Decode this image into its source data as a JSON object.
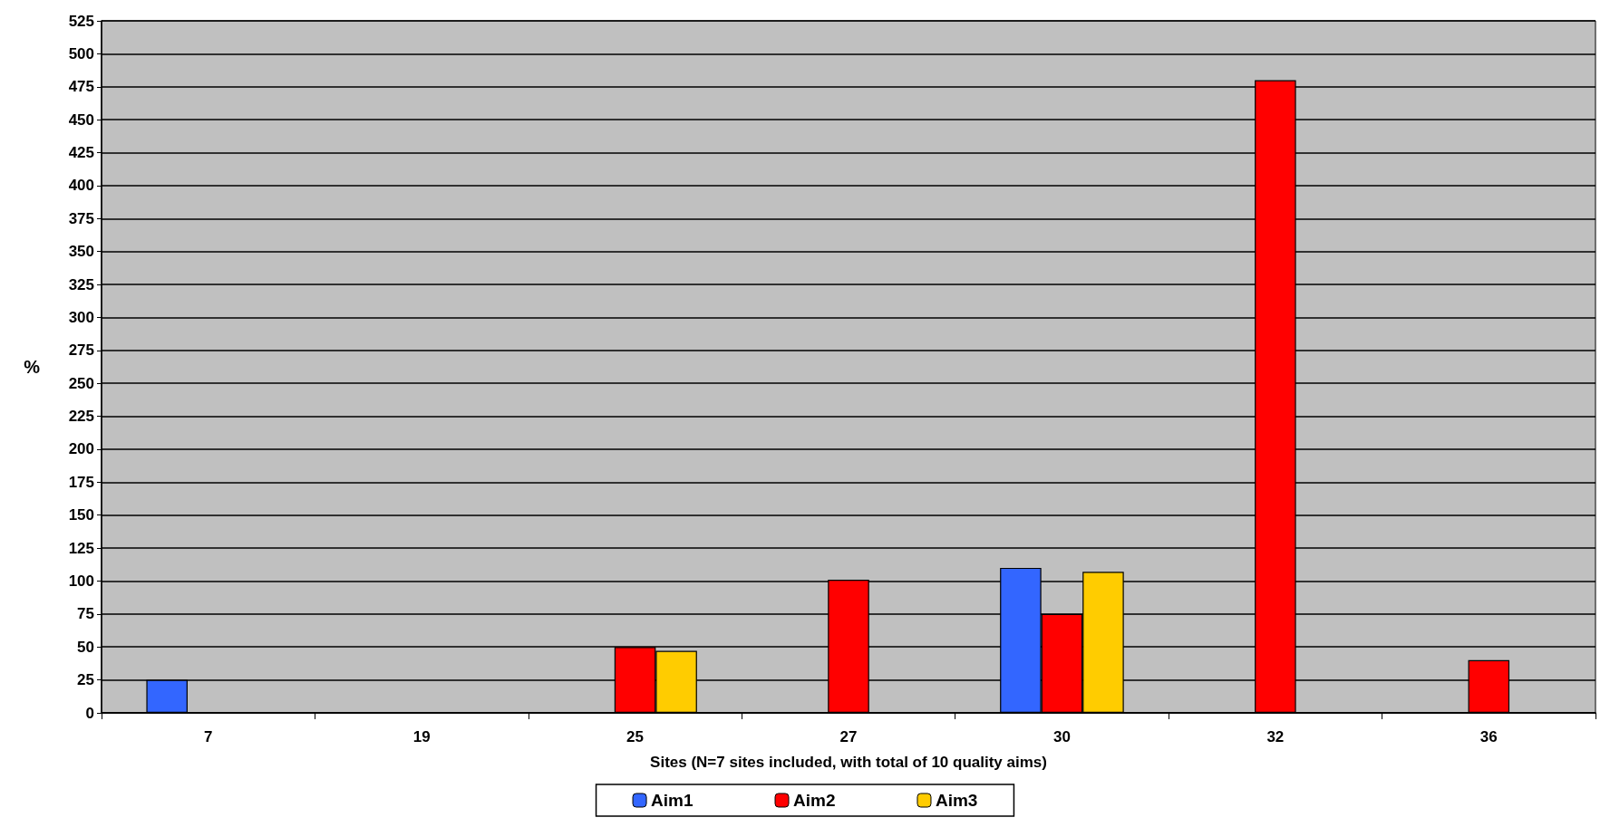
{
  "chart_data": {
    "type": "bar",
    "xlabel": "Sites (N=7 sites included, with total of 10 quality aims)",
    "ylabel": "%",
    "categories": [
      "7",
      "19",
      "25",
      "27",
      "30",
      "32",
      "36"
    ],
    "series": [
      {
        "name": "Aim1",
        "color": "#3366ff",
        "values": [
          25,
          null,
          null,
          null,
          110,
          null,
          null
        ]
      },
      {
        "name": "Aim2",
        "color": "#ff0000",
        "values": [
          null,
          null,
          50,
          101,
          75,
          480,
          40
        ]
      },
      {
        "name": "Aim3",
        "color": "#ffcc00",
        "values": [
          null,
          null,
          47,
          null,
          107,
          null,
          null
        ]
      }
    ],
    "ylim": [
      0,
      525
    ],
    "yticks": [
      0,
      25,
      50,
      75,
      100,
      125,
      150,
      175,
      200,
      225,
      250,
      275,
      300,
      325,
      350,
      375,
      400,
      425,
      450,
      475,
      500,
      525
    ],
    "grid": "y",
    "legend": "bottom"
  }
}
